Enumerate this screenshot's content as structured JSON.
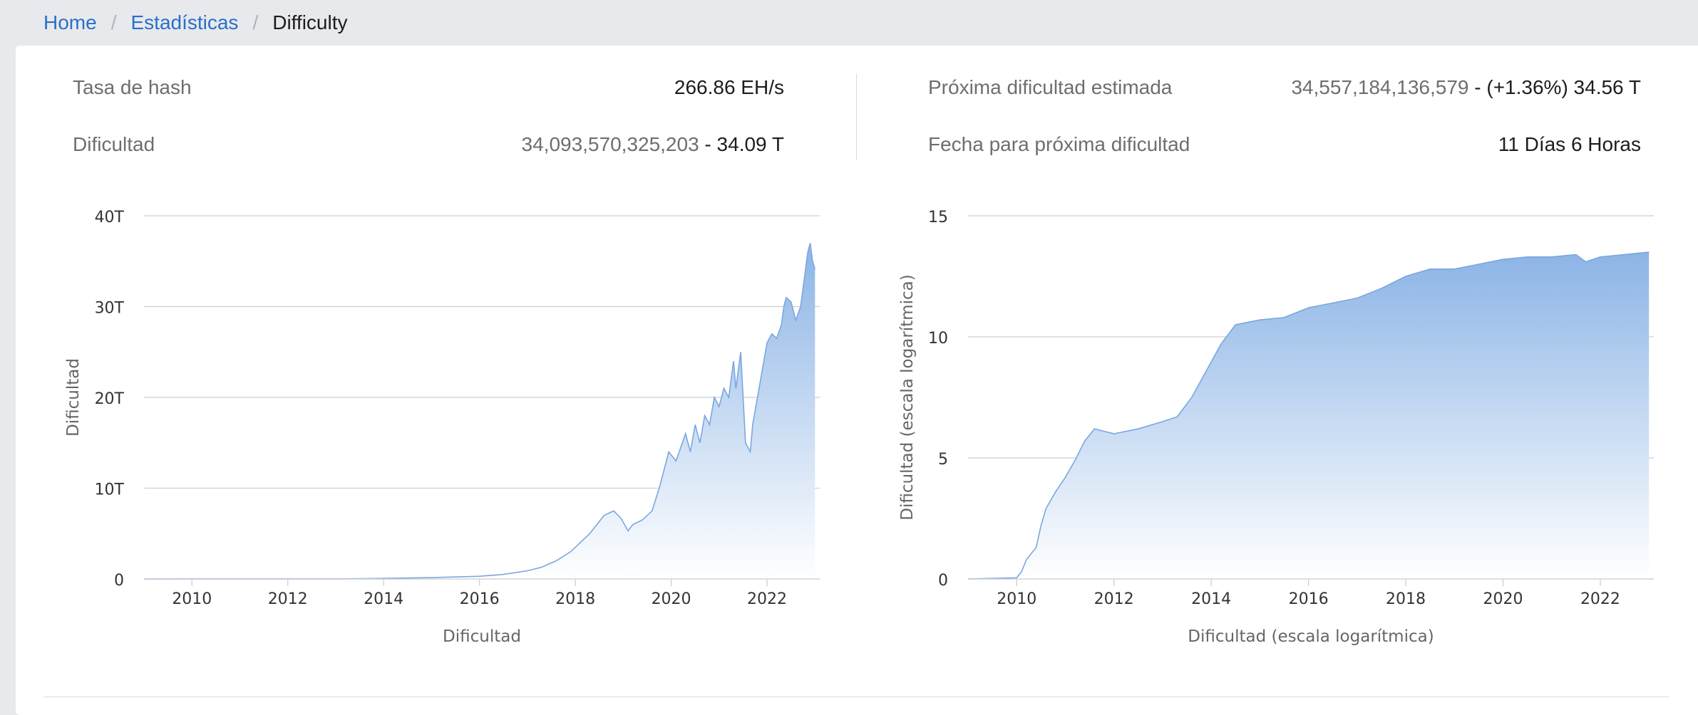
{
  "breadcrumb": {
    "home": "Home",
    "section": "Estadísticas",
    "current": "Difficulty"
  },
  "stats": {
    "hashrate": {
      "label": "Tasa de hash",
      "value": "266.86 EH/s"
    },
    "difficulty": {
      "label": "Dificultad",
      "value_full": "34,093,570,325,203",
      "value_sep": " - ",
      "value_short": "34.09 T"
    },
    "next_difficulty": {
      "label": "Próxima dificultad estimada",
      "value_full": "34,557,184,136,579",
      "value_sep": " - ",
      "value_short": "(+1.36%) 34.56 T"
    },
    "next_date": {
      "label": "Fecha para próxima dificultad",
      "value": "11 Días 6 Horas"
    }
  },
  "colors": {
    "link": "#2a6fc9",
    "area_top": "#8cb4e6",
    "line": "#7aa7e0"
  },
  "chart_data": [
    {
      "type": "area",
      "title": "",
      "xlabel": "Dificultad",
      "ylabel": "Dificultad",
      "xlim": [
        2009.0,
        2023.1
      ],
      "ylim": [
        0,
        40
      ],
      "y_unit": "T",
      "yticks": [
        {
          "value": 0,
          "label": "0"
        },
        {
          "value": 10,
          "label": "10T"
        },
        {
          "value": 20,
          "label": "20T"
        },
        {
          "value": 30,
          "label": "30T"
        },
        {
          "value": 40,
          "label": "40T"
        }
      ],
      "xticks": [
        "2010",
        "2012",
        "2014",
        "2016",
        "2018",
        "2020",
        "2022"
      ],
      "x": [
        2009.0,
        2013.0,
        2014.0,
        2015.0,
        2016.0,
        2016.5,
        2017.0,
        2017.3,
        2017.6,
        2017.9,
        2018.0,
        2018.3,
        2018.6,
        2018.8,
        2018.95,
        2019.1,
        2019.2,
        2019.4,
        2019.6,
        2019.75,
        2019.85,
        2019.95,
        2020.1,
        2020.3,
        2020.4,
        2020.5,
        2020.6,
        2020.7,
        2020.8,
        2020.9,
        2021.0,
        2021.1,
        2021.2,
        2021.3,
        2021.35,
        2021.45,
        2021.55,
        2021.65,
        2021.7,
        2021.8,
        2021.9,
        2022.0,
        2022.1,
        2022.2,
        2022.3,
        2022.35,
        2022.4,
        2022.5,
        2022.6,
        2022.7,
        2022.75,
        2022.85,
        2022.9,
        2022.95,
        2023.0
      ],
      "values": [
        0,
        0.01,
        0.06,
        0.15,
        0.3,
        0.5,
        0.9,
        1.3,
        2.0,
        3.0,
        3.5,
        5.0,
        7.0,
        7.5,
        6.7,
        5.3,
        6.0,
        6.5,
        7.5,
        10.0,
        12.0,
        14.0,
        13.0,
        16.0,
        14.0,
        17.0,
        15.0,
        18.0,
        17.0,
        20.0,
        19.0,
        21.0,
        20.0,
        24.0,
        21.0,
        25.0,
        15.0,
        14.0,
        17.0,
        20.0,
        23.0,
        26.0,
        27.0,
        26.5,
        28.0,
        30.0,
        31.0,
        30.5,
        28.5,
        30.0,
        32.0,
        36.0,
        37.0,
        35.0,
        34.1
      ]
    },
    {
      "type": "area",
      "title": "",
      "xlabel": "Dificultad (escala logarítmica)",
      "ylabel": "Dificultad (escala logarítmica)",
      "xlim": [
        2009.0,
        2023.1
      ],
      "ylim": [
        0,
        15
      ],
      "yticks": [
        {
          "value": 0,
          "label": "0"
        },
        {
          "value": 5,
          "label": "5"
        },
        {
          "value": 10,
          "label": "10"
        },
        {
          "value": 15,
          "label": "15"
        }
      ],
      "xticks": [
        "2010",
        "2012",
        "2014",
        "2016",
        "2018",
        "2020",
        "2022"
      ],
      "x": [
        2009.0,
        2010.0,
        2010.1,
        2010.2,
        2010.4,
        2010.5,
        2010.6,
        2010.8,
        2011.0,
        2011.2,
        2011.4,
        2011.6,
        2011.8,
        2012.0,
        2012.5,
        2013.0,
        2013.3,
        2013.6,
        2013.9,
        2014.2,
        2014.5,
        2015.0,
        2015.5,
        2016.0,
        2016.5,
        2017.0,
        2017.5,
        2018.0,
        2018.5,
        2019.0,
        2019.5,
        2020.0,
        2020.5,
        2021.0,
        2021.5,
        2021.7,
        2022.0,
        2022.5,
        2023.0
      ],
      "values": [
        0,
        0.05,
        0.3,
        0.8,
        1.3,
        2.2,
        2.9,
        3.6,
        4.2,
        4.9,
        5.7,
        6.2,
        6.1,
        6.0,
        6.2,
        6.5,
        6.7,
        7.5,
        8.6,
        9.7,
        10.5,
        10.7,
        10.8,
        11.2,
        11.4,
        11.6,
        12.0,
        12.5,
        12.8,
        12.8,
        13.0,
        13.2,
        13.3,
        13.3,
        13.4,
        13.1,
        13.3,
        13.4,
        13.5
      ]
    }
  ]
}
